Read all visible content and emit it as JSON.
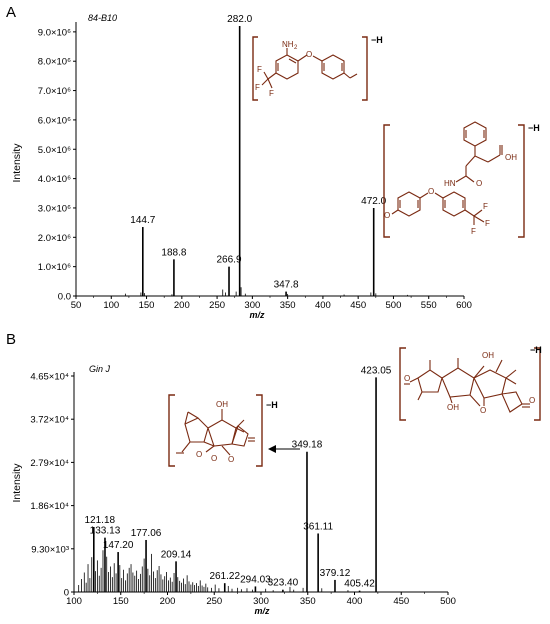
{
  "chart_data": [
    {
      "type": "bar",
      "panel_label": "A",
      "sample_label": "84-B10",
      "xlabel": "m/z",
      "ylabel": "Intensity",
      "xlim": [
        50,
        600
      ],
      "ylim": [
        0,
        9200000.0
      ],
      "x_ticks": [
        50,
        100,
        150,
        200,
        250,
        300,
        350,
        400,
        450,
        500,
        550,
        600
      ],
      "y_ticks": [
        {
          "v": 0,
          "label": "0.0"
        },
        {
          "v": 1000000.0,
          "label": "1.0×10⁶"
        },
        {
          "v": 2000000.0,
          "label": "2.0×10⁶"
        },
        {
          "v": 3000000.0,
          "label": "3.0×10⁶"
        },
        {
          "v": 4000000.0,
          "label": "4.0×10⁶"
        },
        {
          "v": 5000000.0,
          "label": "5.0×10⁶"
        },
        {
          "v": 6000000.0,
          "label": "6.0×10⁶"
        },
        {
          "v": 7000000.0,
          "label": "7.0×10⁶"
        },
        {
          "v": 8000000.0,
          "label": "8.0×10⁶"
        },
        {
          "v": 9000000.0,
          "label": "9.0×10⁶"
        }
      ],
      "peaks": [
        {
          "x": 144.7,
          "y": 2350000.0,
          "label": "144.7"
        },
        {
          "x": 188.8,
          "y": 1250000.0,
          "label": "188.8"
        },
        {
          "x": 266.9,
          "y": 1000000.0,
          "label": "266.9"
        },
        {
          "x": 282.0,
          "y": 9200000.0,
          "label": "282.0"
        },
        {
          "x": 347.8,
          "y": 150000.0,
          "label": "347.8"
        },
        {
          "x": 472.0,
          "y": 3000000.0,
          "label": "472.0"
        }
      ],
      "minor_peaks": [
        {
          "x": 120,
          "y": 80000.0
        },
        {
          "x": 142,
          "y": 120000.0
        },
        {
          "x": 147,
          "y": 100000.0
        },
        {
          "x": 186,
          "y": 60000.0
        },
        {
          "x": 258,
          "y": 220000.0
        },
        {
          "x": 262,
          "y": 120000.0
        },
        {
          "x": 277,
          "y": 150000.0
        },
        {
          "x": 284,
          "y": 300000.0
        },
        {
          "x": 290,
          "y": 80000.0
        },
        {
          "x": 350,
          "y": 70000.0
        },
        {
          "x": 430,
          "y": 50000.0
        },
        {
          "x": 468,
          "y": 120000.0
        },
        {
          "x": 475,
          "y": 90000.0
        },
        {
          "x": 520,
          "y": 40000.0
        }
      ],
      "structure_suffixes": [
        "−H",
        "−H"
      ]
    },
    {
      "type": "bar",
      "panel_label": "B",
      "sample_label": "Gin J",
      "xlabel": "m/z",
      "ylabel": "Intensity",
      "xlim": [
        100,
        500
      ],
      "ylim": [
        0,
        46500.0
      ],
      "x_ticks": [
        100,
        150,
        200,
        250,
        300,
        350,
        400,
        450,
        500
      ],
      "y_ticks": [
        {
          "v": 0,
          "label": "0"
        },
        {
          "v": 9300,
          "label": "9.30×10³"
        },
        {
          "v": 18600,
          "label": "1.86×10⁴"
        },
        {
          "v": 27900,
          "label": "2.79×10⁴"
        },
        {
          "v": 37200,
          "label": "3.72×10⁴"
        },
        {
          "v": 46500,
          "label": "4.65×10⁴"
        }
      ],
      "peaks": [
        {
          "x": 121.18,
          "y": 14000,
          "label": "121.18"
        },
        {
          "x": 133.13,
          "y": 11700,
          "label": "133.13"
        },
        {
          "x": 147.2,
          "y": 8600,
          "label": "147.20"
        },
        {
          "x": 177.06,
          "y": 11200,
          "label": "177.06"
        },
        {
          "x": 209.14,
          "y": 6600,
          "label": "209.14"
        },
        {
          "x": 261.22,
          "y": 1900,
          "label": "261.22"
        },
        {
          "x": 294.03,
          "y": 1200,
          "label": "294.03"
        },
        {
          "x": 323.4,
          "y": 500,
          "label": "323.40"
        },
        {
          "x": 349.18,
          "y": 30200,
          "label": "349.18"
        },
        {
          "x": 361.11,
          "y": 12600,
          "label": "361.11"
        },
        {
          "x": 379.12,
          "y": 2600,
          "label": "379.12"
        },
        {
          "x": 405.42,
          "y": 300,
          "label": "405.42"
        },
        {
          "x": 423.05,
          "y": 46200,
          "label": "423.05"
        }
      ],
      "minor_peaks": [
        {
          "x": 105,
          "y": 1500
        },
        {
          "x": 108,
          "y": 2800
        },
        {
          "x": 111,
          "y": 4200
        },
        {
          "x": 113,
          "y": 2000
        },
        {
          "x": 115,
          "y": 6000
        },
        {
          "x": 117,
          "y": 3000
        },
        {
          "x": 119,
          "y": 7500
        },
        {
          "x": 123,
          "y": 4500
        },
        {
          "x": 125,
          "y": 6800
        },
        {
          "x": 127,
          "y": 3500
        },
        {
          "x": 129,
          "y": 5200
        },
        {
          "x": 131,
          "y": 9000
        },
        {
          "x": 135,
          "y": 7600
        },
        {
          "x": 137,
          "y": 4300
        },
        {
          "x": 139,
          "y": 5500
        },
        {
          "x": 141,
          "y": 3200
        },
        {
          "x": 143,
          "y": 6200
        },
        {
          "x": 145,
          "y": 4000
        },
        {
          "x": 149,
          "y": 5800
        },
        {
          "x": 151,
          "y": 3000
        },
        {
          "x": 153,
          "y": 4800
        },
        {
          "x": 155,
          "y": 2500
        },
        {
          "x": 157,
          "y": 4000
        },
        {
          "x": 159,
          "y": 5200
        },
        {
          "x": 161,
          "y": 6000
        },
        {
          "x": 163,
          "y": 4200
        },
        {
          "x": 165,
          "y": 3500
        },
        {
          "x": 167,
          "y": 4600
        },
        {
          "x": 169,
          "y": 2800
        },
        {
          "x": 171,
          "y": 3900
        },
        {
          "x": 173,
          "y": 5500
        },
        {
          "x": 175,
          "y": 7200
        },
        {
          "x": 179,
          "y": 5000
        },
        {
          "x": 181,
          "y": 3600
        },
        {
          "x": 183,
          "y": 8200
        },
        {
          "x": 185,
          "y": 4400
        },
        {
          "x": 187,
          "y": 3000
        },
        {
          "x": 189,
          "y": 4700
        },
        {
          "x": 191,
          "y": 5600
        },
        {
          "x": 193,
          "y": 3800
        },
        {
          "x": 195,
          "y": 2700
        },
        {
          "x": 197,
          "y": 3400
        },
        {
          "x": 199,
          "y": 4300
        },
        {
          "x": 201,
          "y": 2500
        },
        {
          "x": 203,
          "y": 3100
        },
        {
          "x": 205,
          "y": 2200
        },
        {
          "x": 207,
          "y": 4100
        },
        {
          "x": 211,
          "y": 3200
        },
        {
          "x": 213,
          "y": 2400
        },
        {
          "x": 215,
          "y": 2000
        },
        {
          "x": 217,
          "y": 2900
        },
        {
          "x": 219,
          "y": 1700
        },
        {
          "x": 221,
          "y": 3600
        },
        {
          "x": 223,
          "y": 2300
        },
        {
          "x": 225,
          "y": 1600
        },
        {
          "x": 227,
          "y": 2100
        },
        {
          "x": 229,
          "y": 1500
        },
        {
          "x": 231,
          "y": 1900
        },
        {
          "x": 233,
          "y": 1300
        },
        {
          "x": 235,
          "y": 2500
        },
        {
          "x": 237,
          "y": 1400
        },
        {
          "x": 239,
          "y": 1100
        },
        {
          "x": 241,
          "y": 1800
        },
        {
          "x": 243,
          "y": 1000
        },
        {
          "x": 247,
          "y": 900
        },
        {
          "x": 251,
          "y": 1600
        },
        {
          "x": 255,
          "y": 800
        },
        {
          "x": 265,
          "y": 1300
        },
        {
          "x": 269,
          "y": 700
        },
        {
          "x": 275,
          "y": 900
        },
        {
          "x": 279,
          "y": 600
        },
        {
          "x": 285,
          "y": 800
        },
        {
          "x": 291,
          "y": 500
        },
        {
          "x": 305,
          "y": 700
        },
        {
          "x": 313,
          "y": 400
        },
        {
          "x": 331,
          "y": 1100
        },
        {
          "x": 335,
          "y": 500
        },
        {
          "x": 345,
          "y": 900
        },
        {
          "x": 365,
          "y": 800
        },
        {
          "x": 393,
          "y": 400
        }
      ],
      "structure_suffixes": [
        "−H",
        "−H"
      ]
    }
  ]
}
